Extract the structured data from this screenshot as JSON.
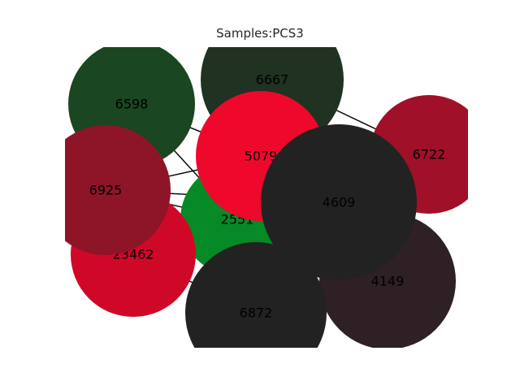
{
  "title": "Samples:PCS3",
  "nodes": [
    {
      "id": "6667",
      "color": "#203222"
    },
    {
      "id": "6598",
      "color": "#1a4622"
    },
    {
      "id": "6722",
      "color": "#a01028"
    },
    {
      "id": "2551",
      "color": "#068a26"
    },
    {
      "id": "5079",
      "color": "#ee082c"
    },
    {
      "id": "23462",
      "color": "#d00828"
    },
    {
      "id": "6925",
      "color": "#8e1428"
    },
    {
      "id": "4149",
      "color": "#2e2024"
    },
    {
      "id": "4609",
      "color": "#222222"
    },
    {
      "id": "6872",
      "color": "#222222"
    }
  ],
  "edges": [
    {
      "from": "6598",
      "to": "5079"
    },
    {
      "from": "6598",
      "to": "2551"
    },
    {
      "from": "6925",
      "to": "5079"
    },
    {
      "from": "6925",
      "to": "2551"
    },
    {
      "from": "6925",
      "to": "4609"
    },
    {
      "from": "6667",
      "to": "6722"
    },
    {
      "from": "23462",
      "to": "6872"
    },
    {
      "from": "2551",
      "to": "4609"
    }
  ]
}
